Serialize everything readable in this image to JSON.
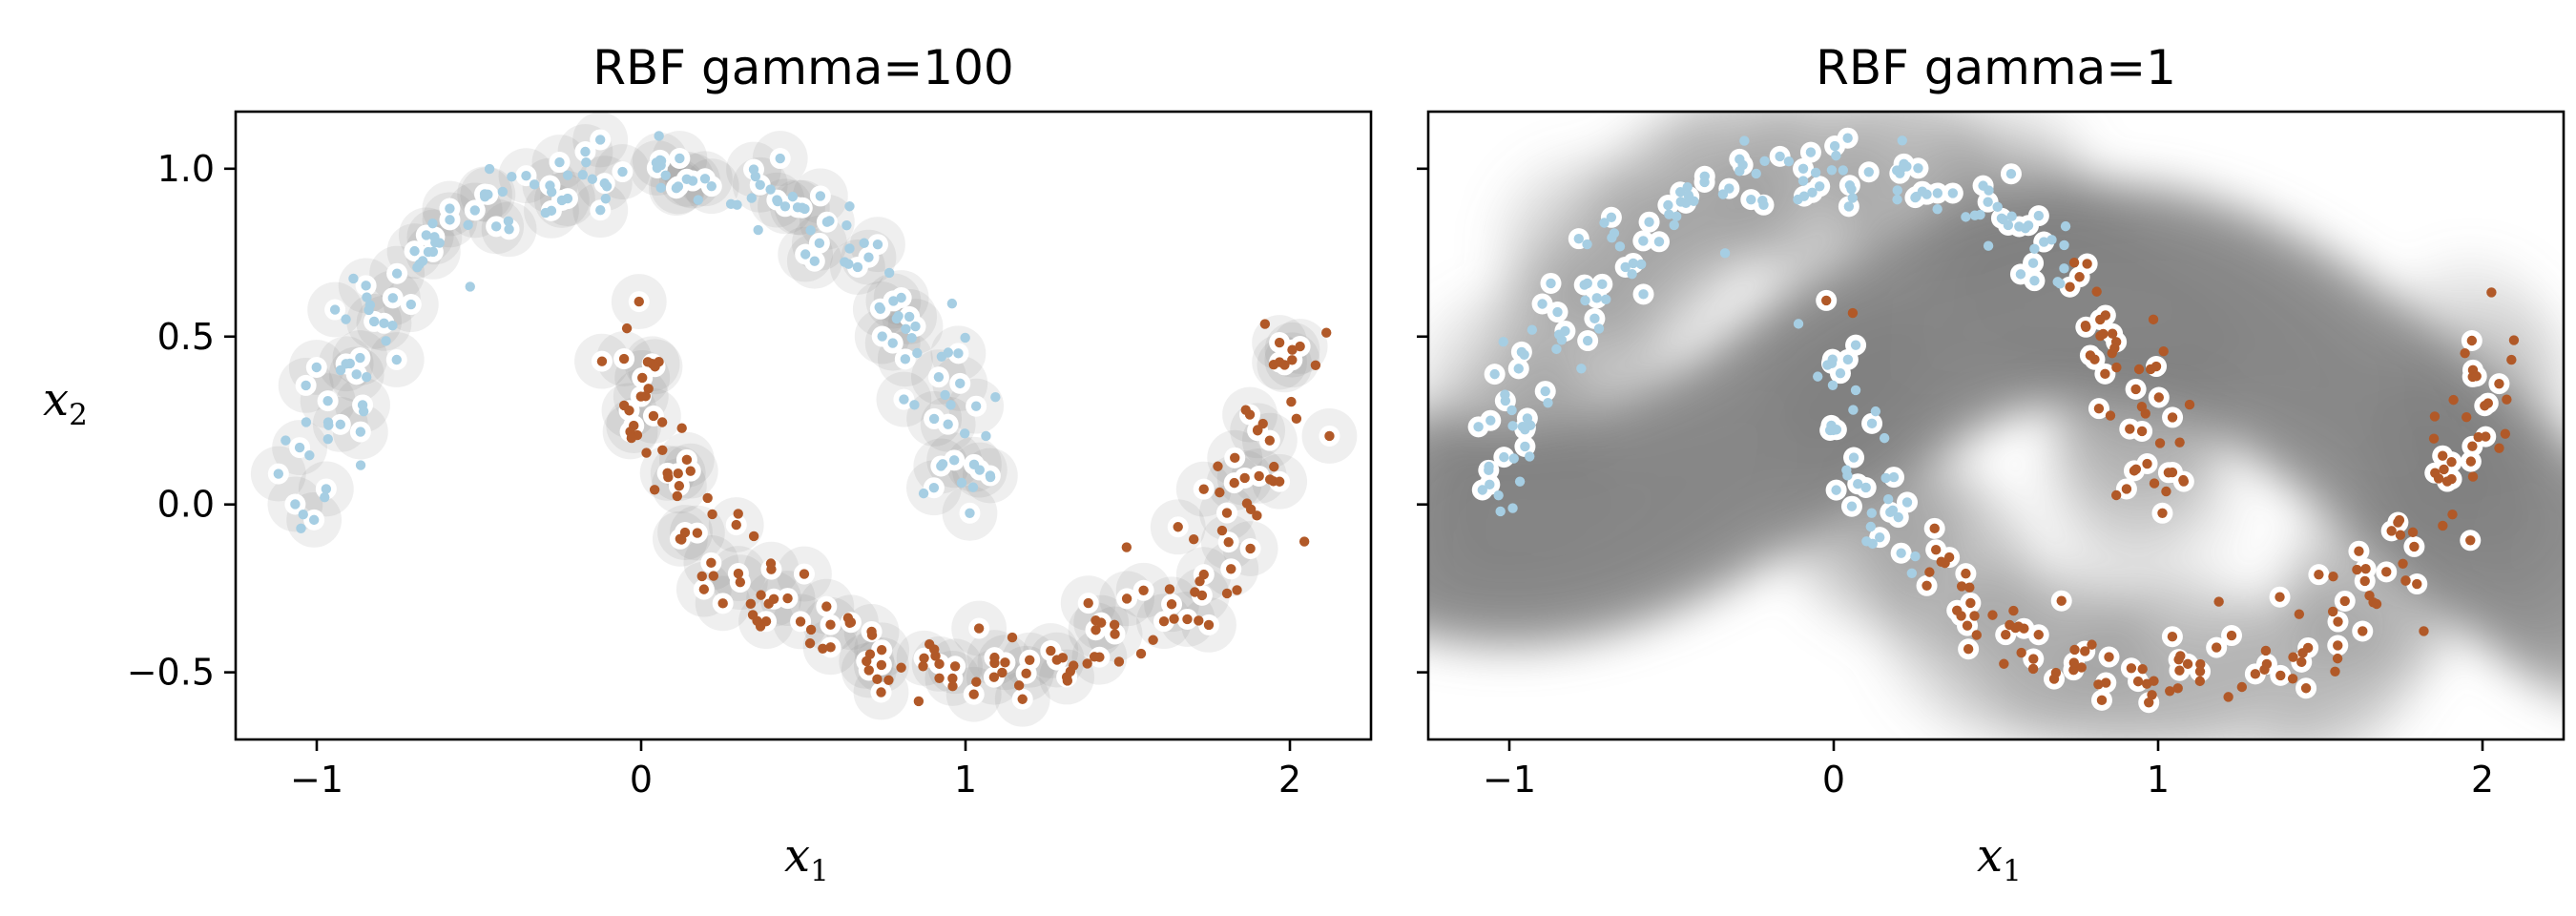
{
  "chart_data": [
    {
      "type": "scatter",
      "title": "RBF gamma=100",
      "xlabel": "x",
      "xlabel_sub": "1",
      "ylabel": "x",
      "ylabel_sub": "2",
      "xlim": [
        -1.25,
        2.25
      ],
      "ylim": [
        -0.7,
        1.17
      ],
      "xticks": [
        -1,
        0,
        1,
        2
      ],
      "xtick_labels": [
        "−1",
        "0",
        "1",
        "2"
      ],
      "yticks": [
        -0.5,
        0.0,
        0.5,
        1.0
      ],
      "ytick_labels": [
        "−0.5",
        "0.0",
        "0.5",
        "1.0"
      ],
      "show_ytick_labels": true,
      "grid": false,
      "gamma": 100,
      "boundary_color": "#808080",
      "series": [
        {
          "color": "#a6cee3",
          "shape": "upper-moon",
          "count": 180
        },
        {
          "color": "#b15928",
          "shape": "lower-moon",
          "count": 180
        }
      ],
      "support_vector_halo": "white"
    },
    {
      "type": "scatter",
      "title": "RBF gamma=1",
      "xlabel": "x",
      "xlabel_sub": "1",
      "xlim": [
        -1.25,
        2.25
      ],
      "ylim": [
        -0.7,
        1.17
      ],
      "xticks": [
        -1,
        0,
        1,
        2
      ],
      "xtick_labels": [
        "−1",
        "0",
        "1",
        "2"
      ],
      "yticks": [
        -0.5,
        0.0,
        0.5,
        1.0
      ],
      "show_ytick_labels": false,
      "grid": false,
      "gamma": 1,
      "boundary_color": "#808080",
      "series": [
        {
          "color": "#a6cee3",
          "shape": "upper-moon-and-inner-left",
          "count": 200
        },
        {
          "color": "#b15928",
          "shape": "lower-moon-and-inner-right",
          "count": 180
        }
      ],
      "support_vector_halo": "white"
    }
  ]
}
